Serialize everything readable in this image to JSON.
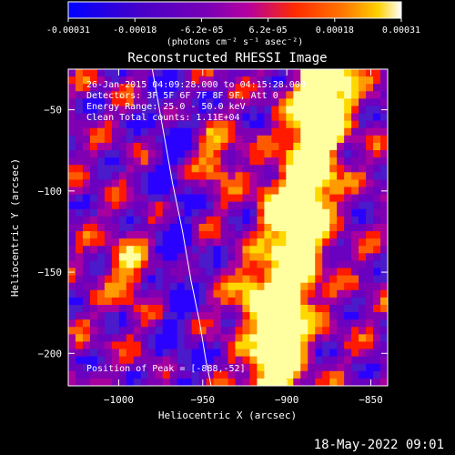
{
  "colorbar": {
    "ticks": [
      "-0.00031",
      "-0.00018",
      "-6.2e-05",
      "6.2e-05",
      "0.00018",
      "0.00031"
    ],
    "units_label": "(photons cm⁻² s⁻¹ asec⁻²)",
    "colors": [
      "#0000ff",
      "#5b00b5",
      "#7a00b5",
      "#b000aa",
      "#ff2a00",
      "#ff7a00",
      "#ffd000",
      "#ffffff"
    ]
  },
  "chart_data": {
    "type": "heatmap",
    "title": "Reconstructed RHESSI Image",
    "xlabel": "Heliocentric X (arcsec)",
    "ylabel": "Heliocentric Y (arcsec)",
    "xlim": [
      -1030,
      -840
    ],
    "ylim": [
      -220,
      -25
    ],
    "xticks": [
      -1000,
      -950,
      -900,
      -850
    ],
    "yticks": [
      -50,
      -100,
      -150,
      -200
    ],
    "x_ticks_labels": [
      "−1000",
      "−950",
      "−900",
      "−850"
    ],
    "y_ticks_labels": [
      "−50",
      "−100",
      "−150",
      "−200"
    ],
    "info_lines": [
      "26-Jan-2015 04:09:28.000 to 04:15:28.000",
      "Detectors: 3F 5F 6F 7F 8F 9F, Att 0",
      "Energy Range: 25.0 - 50.0 keV",
      "Clean     Total counts: 1.11E+04"
    ],
    "peak_label": "Position of Peak = [-888,-52]",
    "peak": {
      "x": -888,
      "y": -52
    },
    "limb_curve": {
      "x": [
        -980,
        -974,
        -968,
        -962,
        -957,
        -952,
        -948,
        -945
      ],
      "y": [
        -25,
        -60,
        -95,
        -125,
        -155,
        -180,
        -205,
        -220
      ]
    }
  },
  "footer": {
    "timestamp": "18-May-2022 09:01"
  }
}
